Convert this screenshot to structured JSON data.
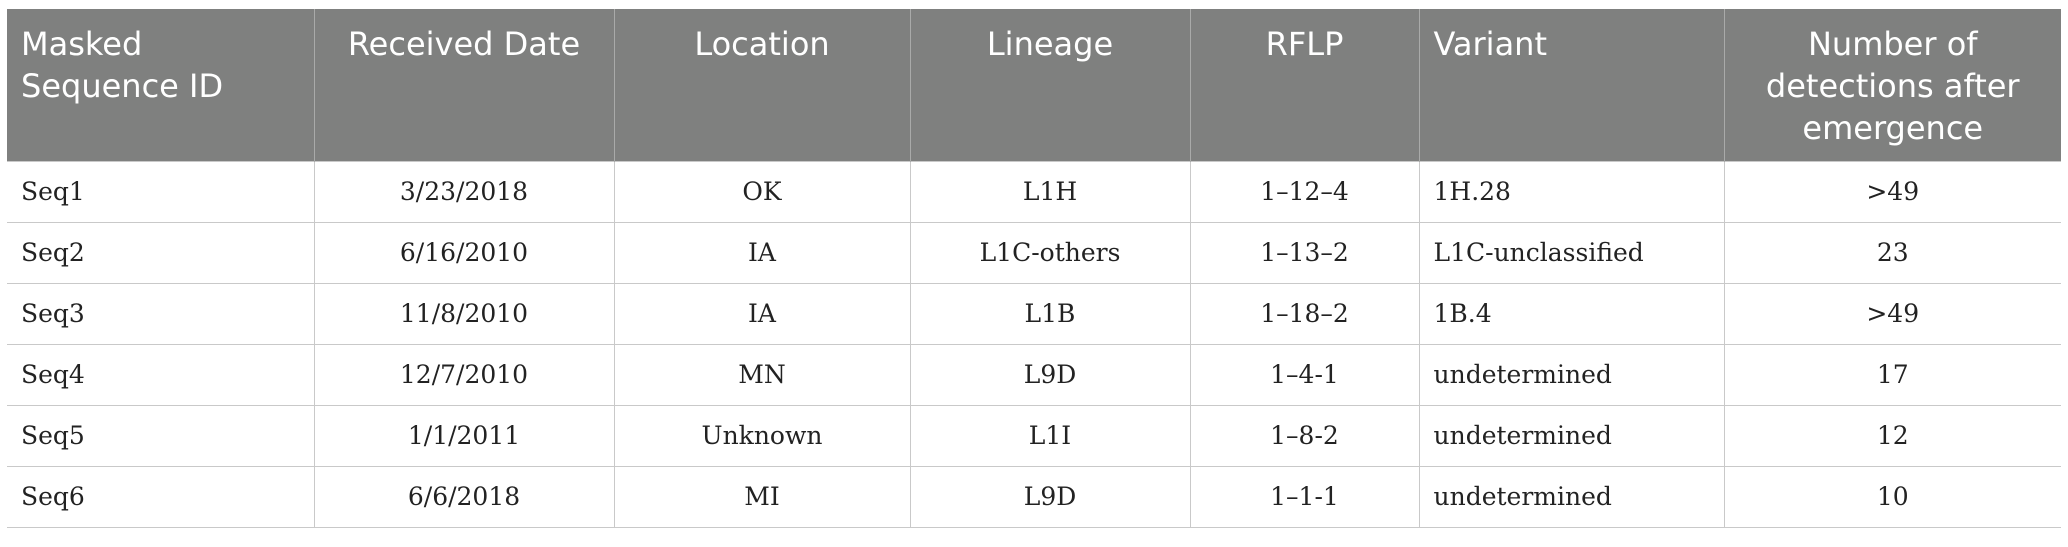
{
  "table": {
    "headers": [
      "Masked Sequence ID",
      "Received Date",
      "Location",
      "Lineage",
      "RFLP",
      "Variant",
      "Number of detections after emergence"
    ],
    "rows": [
      [
        "Seq1",
        "3/23/2018",
        "OK",
        "L1H",
        "1–12–4",
        "1H.28",
        ">49"
      ],
      [
        "Seq2",
        "6/16/2010",
        "IA",
        "L1C-others",
        "1–13–2",
        "L1C-unclassified",
        "23"
      ],
      [
        "Seq3",
        "11/8/2010",
        "IA",
        "L1B",
        "1–18–2",
        "1B.4",
        ">49"
      ],
      [
        "Seq4",
        "12/7/2010",
        "MN",
        "L9D",
        "1–4-1",
        "undetermined",
        "17"
      ],
      [
        "Seq5",
        "1/1/2011",
        "Unknown",
        "L1I",
        "1–8-2",
        "undetermined",
        "12"
      ],
      [
        "Seq6",
        "6/6/2018",
        "MI",
        "L9D",
        "1–1-1",
        "undetermined",
        "10"
      ]
    ]
  },
  "colors": {
    "header_bg": "#7f807f",
    "header_text": "#ffffff",
    "grid": "#c9c9c9"
  }
}
